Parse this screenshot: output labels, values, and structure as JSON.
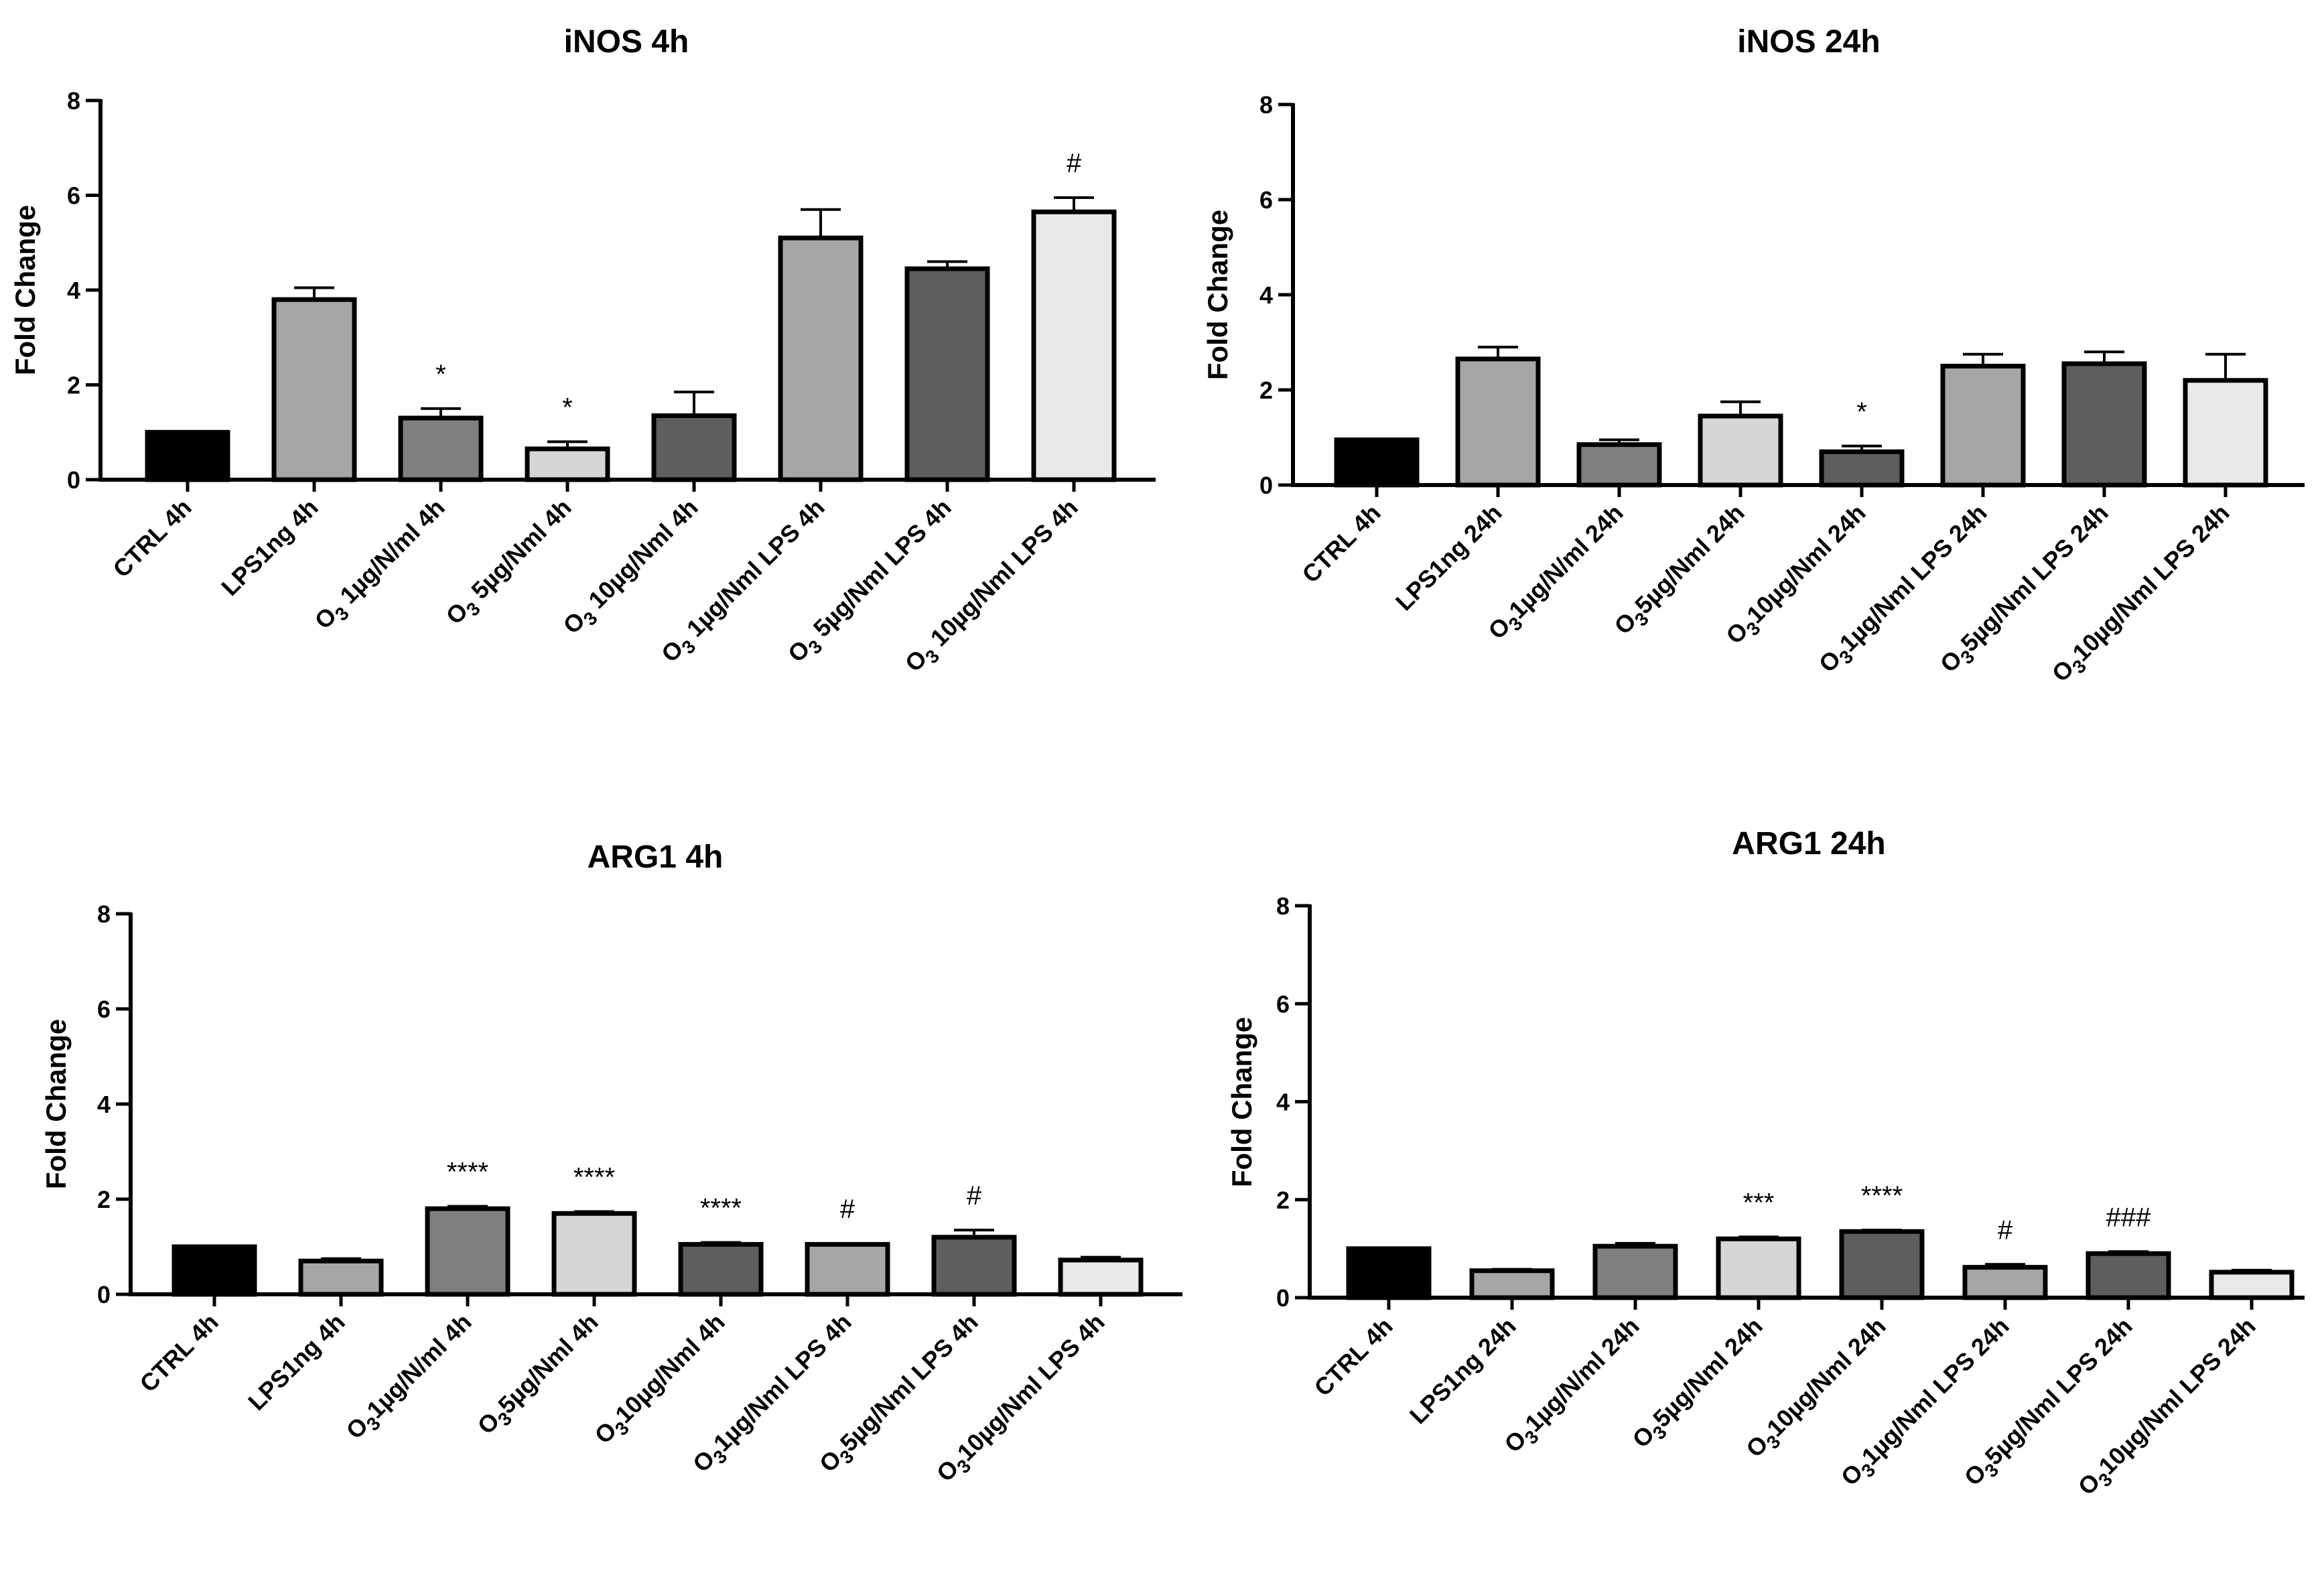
{
  "colors": {
    "black": "#000000",
    "light_gray": "#a6a6a6",
    "mid_gray": "#7f7f7f",
    "pale_gray": "#d6d6d6",
    "dark_gray": "#5e5e5e",
    "very_pale_gray": "#e9e9e9"
  },
  "chart_data": [
    {
      "type": "bar",
      "title": "iNOS 4h",
      "xlabel": "",
      "ylabel": "Fold Change",
      "ylim": [
        0,
        8
      ],
      "yticks": [
        "0",
        "2",
        "4",
        "6",
        "8"
      ],
      "categories": [
        {
          "pre": "",
          "sub": "",
          "post": "CTRL 4h"
        },
        {
          "pre": "",
          "sub": "",
          "post": "LPS1ng 4h"
        },
        {
          "pre": "O",
          "sub": "3",
          "post": " 1µg/N/ml 4h"
        },
        {
          "pre": "O",
          "sub": "3",
          "post": " 5µg/Nml 4h"
        },
        {
          "pre": "O",
          "sub": "3",
          "post": " 10µg/Nml 4h"
        },
        {
          "pre": "O",
          "sub": "3",
          "post": " 1µg/Nml LPS 4h"
        },
        {
          "pre": "O",
          "sub": "3",
          "post": " 5µg/Nml LPS 4h"
        },
        {
          "pre": "O",
          "sub": "3",
          "post": " 10µg/Nml LPS 4h"
        }
      ],
      "values": [
        1.0,
        3.8,
        1.3,
        0.65,
        1.35,
        5.1,
        4.45,
        5.65
      ],
      "errors": [
        0,
        0.25,
        0.2,
        0.15,
        0.5,
        0.6,
        0.15,
        0.3
      ],
      "annotations": [
        "",
        "",
        "*",
        "*",
        "",
        "",
        "",
        "#"
      ],
      "bar_colors": [
        "black",
        "light_gray",
        "mid_gray",
        "pale_gray",
        "dark_gray",
        "light_gray",
        "dark_gray",
        "very_pale_gray"
      ]
    },
    {
      "type": "bar",
      "title": "iNOS 24h",
      "xlabel": "",
      "ylabel": "Fold Change",
      "ylim": [
        0,
        8
      ],
      "yticks": [
        "0",
        "2",
        "4",
        "6",
        "8"
      ],
      "categories": [
        {
          "pre": "",
          "sub": "",
          "post": "CTRL 4h"
        },
        {
          "pre": "",
          "sub": "",
          "post": "LPS1ng 24h"
        },
        {
          "pre": "O",
          "sub": "3",
          "post": "1µg/N/ml 24h"
        },
        {
          "pre": "O",
          "sub": "3",
          "post": "5µg/Nml 24h"
        },
        {
          "pre": "O",
          "sub": "3",
          "post": "10µg/Nml 24h"
        },
        {
          "pre": "O",
          "sub": "3",
          "post": "1µg/Nml LPS 24h"
        },
        {
          "pre": "O",
          "sub": "3",
          "post": "5µg/Nml LPS 24h"
        },
        {
          "pre": "O",
          "sub": "3",
          "post": "10µg/Nml LPS 24h"
        }
      ],
      "values": [
        0.95,
        2.65,
        0.85,
        1.45,
        0.7,
        2.5,
        2.55,
        2.2
      ],
      "errors": [
        0,
        0.25,
        0.1,
        0.3,
        0.12,
        0.25,
        0.25,
        0.55
      ],
      "annotations": [
        "",
        "",
        "",
        "",
        "*",
        "",
        "",
        ""
      ],
      "bar_colors": [
        "black",
        "light_gray",
        "mid_gray",
        "pale_gray",
        "dark_gray",
        "light_gray",
        "dark_gray",
        "very_pale_gray"
      ]
    },
    {
      "type": "bar",
      "title": "ARG1 4h",
      "xlabel": "",
      "ylabel": "Fold Change",
      "ylim": [
        0,
        8
      ],
      "yticks": [
        "0",
        "2",
        "4",
        "6",
        "8"
      ],
      "categories": [
        {
          "pre": "",
          "sub": "",
          "post": "CTRL 4h"
        },
        {
          "pre": "",
          "sub": "",
          "post": "LPS1ng 4h"
        },
        {
          "pre": "O",
          "sub": "3",
          "post": "1µg/N/ml 4h"
        },
        {
          "pre": "O",
          "sub": "3",
          "post": "5µg/Nml 4h"
        },
        {
          "pre": "O",
          "sub": "3",
          "post": "10µg/Nml 4h"
        },
        {
          "pre": "O",
          "sub": "3",
          "post": "1µg/Nml LPS 4h"
        },
        {
          "pre": "O",
          "sub": "3",
          "post": "5µg/Nml LPS 4h"
        },
        {
          "pre": "O",
          "sub": "3",
          "post": "10µg/Nml LPS 4h"
        }
      ],
      "values": [
        1.0,
        0.7,
        1.8,
        1.7,
        1.05,
        1.05,
        1.2,
        0.72
      ],
      "errors": [
        0,
        0.05,
        0.05,
        0.04,
        0.04,
        0.02,
        0.15,
        0.06
      ],
      "annotations": [
        "",
        "",
        "****",
        "****",
        "****",
        "#",
        "#",
        ""
      ],
      "bar_colors": [
        "black",
        "light_gray",
        "mid_gray",
        "pale_gray",
        "dark_gray",
        "light_gray",
        "dark_gray",
        "very_pale_gray"
      ]
    },
    {
      "type": "bar",
      "title": "ARG1 24h",
      "xlabel": "",
      "ylabel": "Fold Change",
      "ylim": [
        0,
        8
      ],
      "yticks": [
        "0",
        "2",
        "4",
        "6",
        "8"
      ],
      "categories": [
        {
          "pre": "",
          "sub": "",
          "post": "CTRL 4h"
        },
        {
          "pre": "",
          "sub": "",
          "post": "LPS1ng 24h"
        },
        {
          "pre": "O",
          "sub": "3",
          "post": "1µg/N/ml 24h"
        },
        {
          "pre": "O",
          "sub": "3",
          "post": "5µg/Nml 24h"
        },
        {
          "pre": "O",
          "sub": "3",
          "post": "10µg/Nml 24h"
        },
        {
          "pre": "O",
          "sub": "3",
          "post": "1µg/Nml LPS 24h"
        },
        {
          "pre": "O",
          "sub": "3",
          "post": "5µg/Nml LPS 24h"
        },
        {
          "pre": "O",
          "sub": "3",
          "post": "10µg/Nml LPS 24h"
        }
      ],
      "values": [
        1.0,
        0.55,
        1.05,
        1.2,
        1.35,
        0.62,
        0.9,
        0.52
      ],
      "errors": [
        0,
        0.03,
        0.06,
        0.04,
        0.03,
        0.06,
        0.04,
        0.04
      ],
      "annotations": [
        "",
        "",
        "",
        "***",
        "****",
        "#",
        "###",
        ""
      ],
      "bar_colors": [
        "black",
        "light_gray",
        "mid_gray",
        "pale_gray",
        "dark_gray",
        "light_gray",
        "dark_gray",
        "very_pale_gray"
      ]
    }
  ]
}
